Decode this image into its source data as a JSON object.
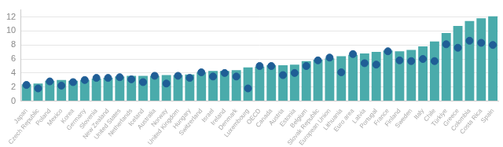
{
  "chart_data": {
    "type": "bar",
    "categories": [
      "Japan",
      "Czech Republic",
      "Poland",
      "Mexico",
      "Korea",
      "Germany",
      "Slovenia",
      "New Zealand",
      "United States",
      "Netherlands",
      "Iceland",
      "Australia",
      "Norway",
      "United Kingdom",
      "Hungary",
      "Switzerland",
      "Israel",
      "Ireland",
      "Denmark",
      "Luxembourg",
      "OECD",
      "Canada",
      "Austria",
      "Estonia",
      "Belgium",
      "Slovak Republic",
      "European Union",
      "Lithuania",
      "Euro area",
      "Latvia",
      "Portugal",
      "France",
      "Finland",
      "Sweden",
      "Italy",
      "Chile",
      "Türkiye",
      "Greece",
      "Colombia",
      "Costa Rica",
      "Spain"
    ],
    "series": [
      {
        "type": "bar",
        "color": "#4aabab",
        "values": [
          2.4,
          2.5,
          2.9,
          3.0,
          2.9,
          3.0,
          3.2,
          3.3,
          3.5,
          3.6,
          3.6,
          3.6,
          3.7,
          3.7,
          3.8,
          4.1,
          4.3,
          4.3,
          4.4,
          4.8,
          4.9,
          5.1,
          5.1,
          5.2,
          5.7,
          5.9,
          6.1,
          6.4,
          6.6,
          6.8,
          7.0,
          7.2,
          7.1,
          7.3,
          7.8,
          8.5,
          9.7,
          10.7,
          11.4,
          11.8,
          12.1
        ]
      },
      {
        "type": "scatter",
        "marker": "circle",
        "color": "#1f5e96",
        "values": [
          2.3,
          1.8,
          2.8,
          2.2,
          2.7,
          3.0,
          3.3,
          3.3,
          3.4,
          3.1,
          2.7,
          3.6,
          2.5,
          3.6,
          3.3,
          4.1,
          3.5,
          4.0,
          3.5,
          1.8,
          5.0,
          5.0,
          3.7,
          4.0,
          5.0,
          5.8,
          6.2,
          4.1,
          6.7,
          5.4,
          5.2,
          7.1,
          5.8,
          5.7,
          6.0,
          5.7,
          8.1,
          7.6,
          8.6,
          8.3,
          8.0
        ]
      }
    ],
    "ylim": [
      0,
      13
    ],
    "yticks": [
      0,
      2,
      4,
      6,
      8,
      10,
      12
    ],
    "grid": true
  }
}
